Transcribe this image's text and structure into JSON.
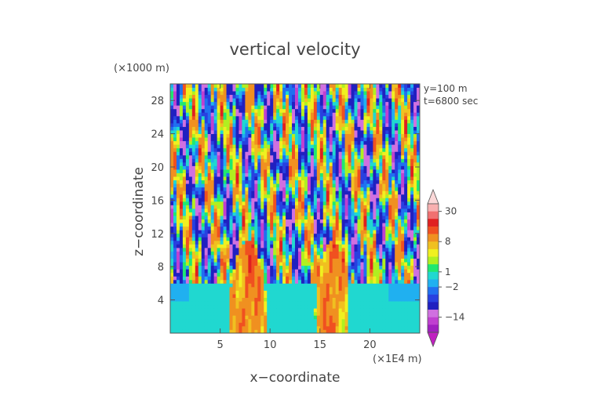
{
  "chart_data": {
    "type": "heatmap",
    "title": "vertical velocity",
    "xlabel": "x−coordinate",
    "ylabel": "z−coordinate",
    "x_unit": "(×1E4 m)",
    "y_unit": "(×1000 m)",
    "annotations": [
      "y=100  m",
      "t=6800 sec"
    ],
    "xlim": [
      0,
      25
    ],
    "ylim": [
      0,
      30
    ],
    "x_ticks": [
      5,
      10,
      15,
      20
    ],
    "y_ticks": [
      4,
      8,
      12,
      16,
      20,
      24,
      28
    ],
    "colorbar": {
      "position": "right",
      "labels": [
        {
          "text": "30",
          "value": 30
        },
        {
          "text": "8",
          "value": 8
        },
        {
          "text": "1",
          "value": 1
        },
        {
          "text": "−2",
          "value": -2
        },
        {
          "text": "−14",
          "value": -14
        }
      ],
      "levels": [
        -30,
        -20,
        -14,
        -10,
        -6,
        -4,
        -2,
        -1,
        1,
        2,
        4,
        6,
        8,
        12,
        16,
        20,
        30
      ],
      "colors": [
        "#a020c0",
        "#c040d0",
        "#d070e0",
        "#2020c0",
        "#2840e0",
        "#2070f0",
        "#20b0f0",
        "#20d8d0",
        "#20e870",
        "#b0f020",
        "#f0f020",
        "#f0c020",
        "#f09020",
        "#f05020",
        "#e02020",
        "#f07070",
        "#f8b0b0"
      ]
    }
  }
}
